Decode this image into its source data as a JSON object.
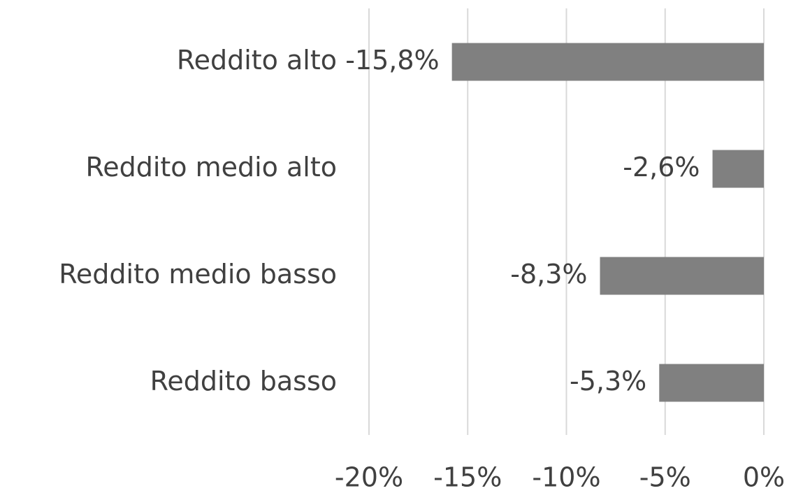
{
  "chart_data": {
    "type": "bar",
    "orientation": "horizontal",
    "categories": [
      "Reddito alto",
      "Reddito medio alto",
      "Reddito medio basso",
      "Reddito basso"
    ],
    "values": [
      -15.8,
      -2.6,
      -8.3,
      -5.3
    ],
    "value_labels": [
      "-15,8%",
      "-2,6%",
      "-8,3%",
      "-5,3%"
    ],
    "color": "#808080",
    "xlim": [
      -20,
      0
    ],
    "xticks": [
      {
        "value": -20,
        "label": "-20%"
      },
      {
        "value": -15,
        "label": "-15%"
      },
      {
        "value": -10,
        "label": "-10%"
      },
      {
        "value": -5,
        "label": "-5%"
      },
      {
        "value": 0,
        "label": "0%"
      }
    ],
    "grid": true
  }
}
